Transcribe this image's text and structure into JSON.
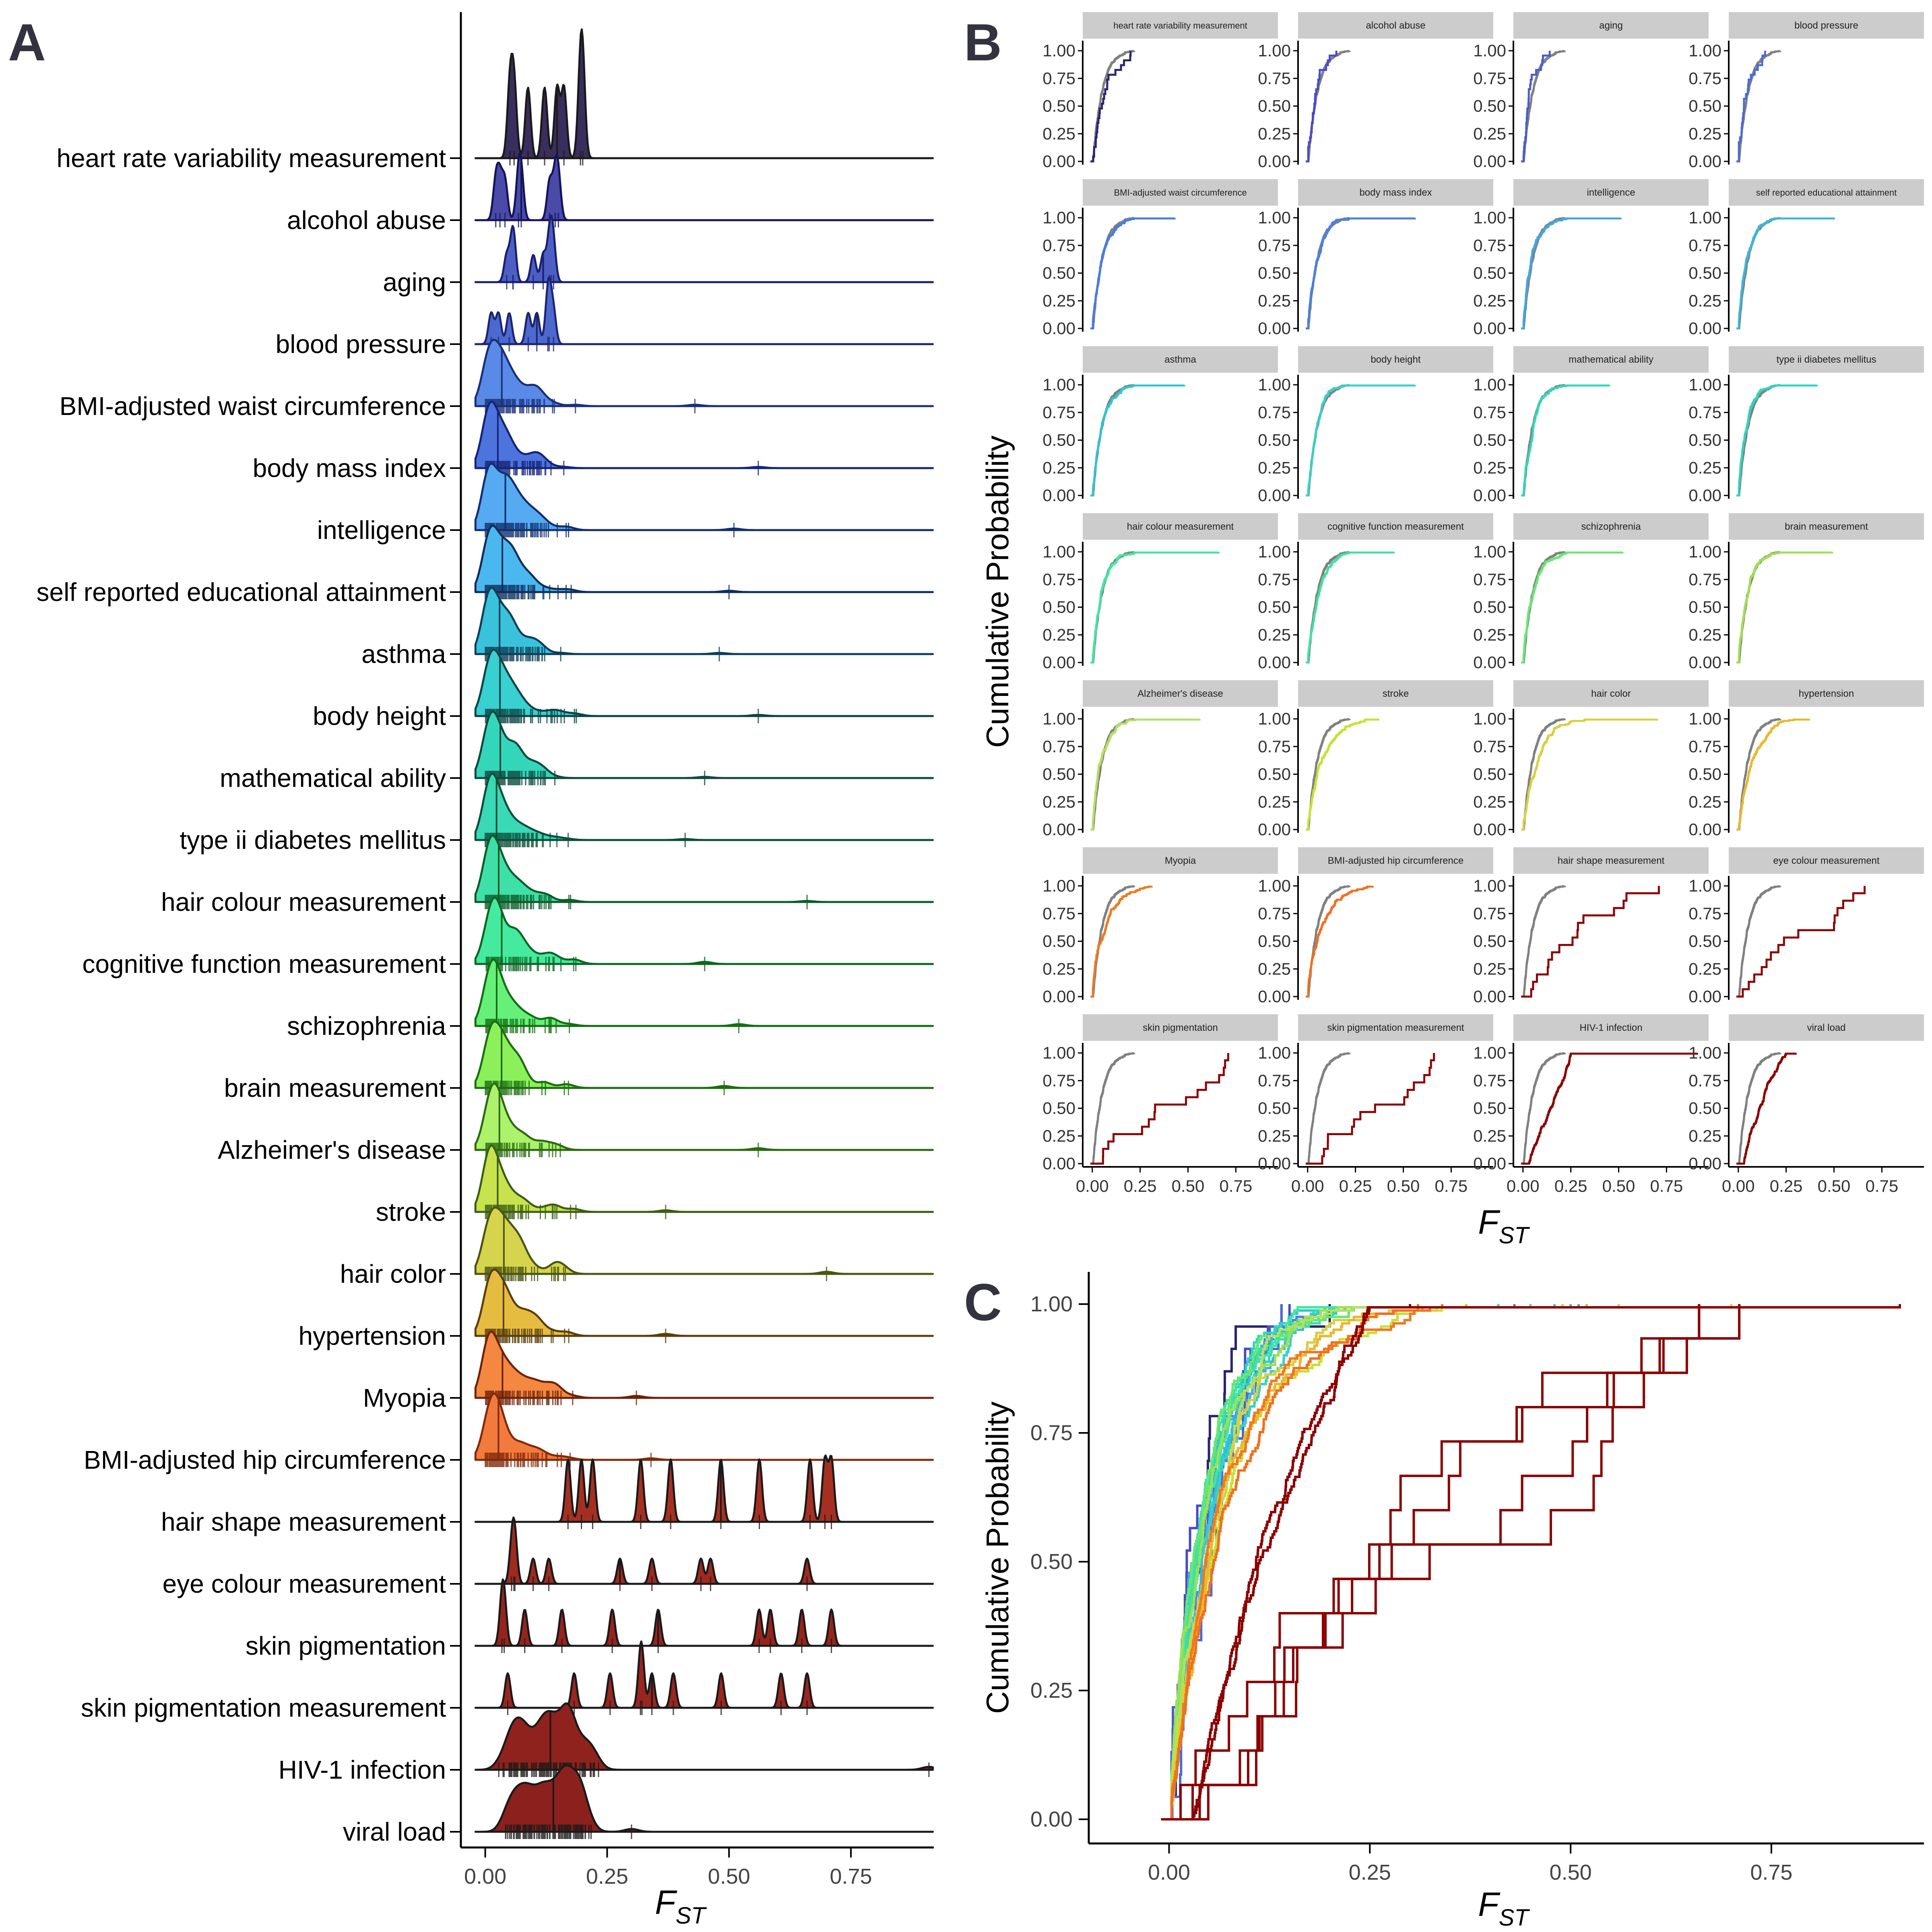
{
  "panels": {
    "a": "A",
    "b": "B",
    "c": "C"
  },
  "colors": {
    "axis": "#000000",
    "strip_bg": "#cccccc",
    "reference_line": "#808080",
    "dark_red": "#8b0000"
  },
  "chart_data": [
    {
      "panel": "A",
      "type": "ridgeline",
      "xlabel": "F",
      "xlabel_sub": "ST",
      "xlim": [
        -0.05,
        0.92
      ],
      "xticks": [
        0,
        0.25,
        0.5,
        0.75
      ],
      "xtick_labels": [
        "0.00",
        "0.25",
        "0.50",
        "0.75"
      ],
      "categories": [
        "heart rate variability measurement",
        "alcohol abuse",
        "aging",
        "blood pressure",
        "BMI-adjusted waist circumference",
        "body mass index",
        "intelligence",
        "self reported educational attainment",
        "asthma",
        "body height",
        "mathematical ability",
        "type ii diabetes mellitus",
        "hair colour measurement",
        "cognitive function measurement",
        "schizophrenia",
        "brain measurement",
        "Alzheimer's disease",
        "stroke",
        "hair color",
        "hypertension",
        "Myopia",
        "BMI-adjusted hip circumference",
        "hair shape measurement",
        "eye colour measurement",
        "skin pigmentation",
        "skin pigmentation measurement",
        "HIV-1 infection",
        "viral load"
      ],
      "fill_colors": [
        "#3a2e5e",
        "#4a4aa8",
        "#4e5fc3",
        "#4c69cf",
        "#5a8ae8",
        "#4c74dc",
        "#55aaf2",
        "#4ab8ee",
        "#3ac2dc",
        "#38d0d0",
        "#34d6ba",
        "#38d9b4",
        "#3fe0a8",
        "#44ea9e",
        "#66f07a",
        "#8cf05a",
        "#acf26a",
        "#c8e24e",
        "#d6d44c",
        "#e6bc40",
        "#f48840",
        "#f27a3c",
        "#a53022",
        "#9e2a20",
        "#96241c",
        "#9a2620",
        "#8f221c",
        "#8b201c"
      ],
      "line_colors": [
        "#1a1a1a",
        "#14145a",
        "#1a1f6e",
        "#1e2572",
        "#1a2f78",
        "#15247a",
        "#12306e",
        "#0d2e5c",
        "#0d3e58",
        "#0c4444",
        "#0d4a3e",
        "#0d4e3a",
        "#0d5c2a",
        "#0e6624",
        "#117012",
        "#1b6e10",
        "#2c6a12",
        "#3c5e14",
        "#4a5610",
        "#5a3e0a",
        "#6e2208",
        "#802a0a",
        "#1a1a1a",
        "#1a1a1a",
        "#1a1a1a",
        "#1a1a1a",
        "#1a1a1a",
        "#1a1a1a"
      ],
      "max_fst": [
        0.2,
        0.15,
        0.14,
        0.14,
        0.43,
        0.56,
        0.51,
        0.5,
        0.48,
        0.56,
        0.45,
        0.41,
        0.66,
        0.45,
        0.52,
        0.49,
        0.56,
        0.37,
        0.7,
        0.37,
        0.31,
        0.34,
        0.71,
        0.66,
        0.71,
        0.66,
        0.91,
        0.3
      ]
    },
    {
      "panel": "B",
      "type": "line",
      "ylabel": "Cumulative Probability",
      "xlabel": "F",
      "xlabel_sub": "ST",
      "xlim": [
        -0.05,
        0.97
      ],
      "ylim": [
        0,
        1
      ],
      "xticks": [
        0,
        0.25,
        0.5,
        0.75
      ],
      "xtick_labels": [
        "0.00",
        "0.25",
        "0.50",
        "0.75"
      ],
      "yticks": [
        0,
        0.25,
        0.5,
        0.75,
        1
      ],
      "ytick_labels": [
        "0.00",
        "0.25",
        "0.50",
        "0.75",
        "1.00"
      ],
      "facets": [
        "heart rate variability measurement",
        "alcohol abuse",
        "aging",
        "blood pressure",
        "BMI-adjusted waist circumference",
        "body mass index",
        "intelligence",
        "self reported educational attainment",
        "asthma",
        "body height",
        "mathematical ability",
        "type ii diabetes mellitus",
        "hair colour measurement",
        "cognitive function measurement",
        "schizophrenia",
        "brain measurement",
        "Alzheimer's disease",
        "stroke",
        "hair color",
        "hypertension",
        "Myopia",
        "BMI-adjusted hip circumference",
        "hair shape measurement",
        "eye colour measurement",
        "skin pigmentation",
        "skin pigmentation measurement",
        "HIV-1 infection",
        "viral load"
      ],
      "series_colors": [
        "#2a2470",
        "#4a4ac8",
        "#4a5ccc",
        "#4a6ad8",
        "#4a7ce0",
        "#4a80e0",
        "#40a8e0",
        "#3cb6d8",
        "#30c4d0",
        "#38d0c8",
        "#30d8b8",
        "#2ed6c0",
        "#3ee8a0",
        "#40e0a0",
        "#66e870",
        "#a0e050",
        "#b4e060",
        "#c8e030",
        "#d8d040",
        "#e8b830",
        "#f07820",
        "#f07020",
        "#8b0000",
        "#8b0000",
        "#8b0000",
        "#8b0000",
        "#8b0000",
        "#8b0000"
      ]
    },
    {
      "panel": "C",
      "type": "line",
      "ylabel": "Cumulative Probability",
      "xlabel": "F",
      "xlabel_sub": "ST",
      "xlim": [
        -0.1,
        0.94
      ],
      "ylim": [
        0,
        1
      ],
      "xticks": [
        0,
        0.25,
        0.5,
        0.75
      ],
      "xtick_labels": [
        "0.00",
        "0.25",
        "0.50",
        "0.75"
      ],
      "yticks": [
        0,
        0.25,
        0.5,
        0.75,
        1
      ],
      "ytick_labels": [
        "0.00",
        "0.25",
        "0.50",
        "0.75",
        "1.00"
      ]
    }
  ]
}
